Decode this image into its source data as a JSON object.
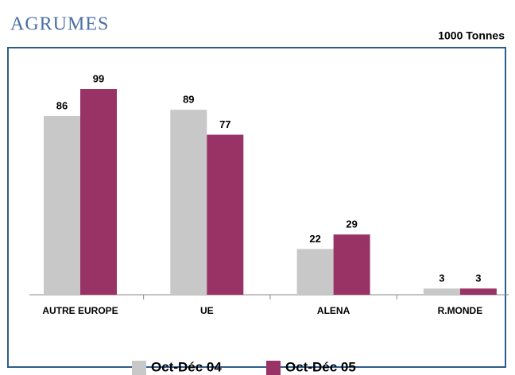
{
  "chart_data": {
    "type": "bar",
    "title": "AGRUMES",
    "subtitle": "1000 Tonnes",
    "categories": [
      "AUTRE EUROPE",
      "UE",
      "ALENA",
      "R.MONDE"
    ],
    "series": [
      {
        "name": "Oct-Déc 04",
        "color": "#c8c8c8",
        "values": [
          86,
          89,
          22,
          3
        ]
      },
      {
        "name": "Oct-Déc 05",
        "color": "#993366",
        "values": [
          99,
          77,
          29,
          3
        ]
      }
    ]
  }
}
